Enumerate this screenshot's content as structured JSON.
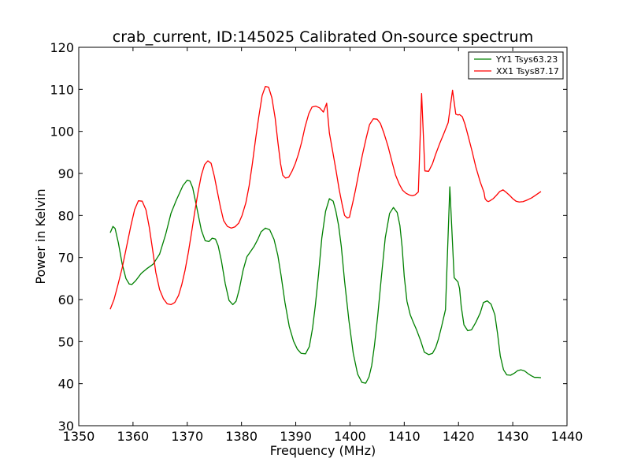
{
  "chart_data": {
    "type": "line",
    "title": "crab_current, ID:145025 Calibrated On-source spectrum",
    "xlabel": "Frequency (MHz)",
    "ylabel": "Power in Kelvin",
    "xlim": [
      1350,
      1440
    ],
    "ylim": [
      30,
      120
    ],
    "xticks": [
      1350,
      1360,
      1370,
      1380,
      1390,
      1400,
      1410,
      1420,
      1430,
      1440
    ],
    "yticks": [
      30,
      40,
      50,
      60,
      70,
      80,
      90,
      100,
      110,
      120
    ],
    "grid": false,
    "legend_position": "top-right",
    "series": [
      {
        "name": "YY1 Tsys63.23",
        "color": "#008000",
        "x": [
          1355.8,
          1356.3,
          1356.7,
          1357.3,
          1358.0,
          1358.7,
          1359.3,
          1359.8,
          1360.5,
          1361.5,
          1362.5,
          1363.7,
          1364.9,
          1366.0,
          1367.0,
          1368.0,
          1369.2,
          1370.0,
          1370.5,
          1371.0,
          1371.8,
          1372.6,
          1373.3,
          1374.0,
          1374.6,
          1375.2,
          1375.7,
          1376.3,
          1377.0,
          1377.7,
          1378.4,
          1379.0,
          1379.6,
          1380.3,
          1381.0,
          1381.6,
          1382.3,
          1383.0,
          1383.6,
          1384.4,
          1385.2,
          1386.0,
          1386.7,
          1387.3,
          1388.0,
          1388.8,
          1389.6,
          1390.3,
          1391.0,
          1391.8,
          1392.5,
          1393.1,
          1393.6,
          1394.2,
          1394.8,
          1395.5,
          1396.2,
          1396.9,
          1397.4,
          1397.9,
          1398.4,
          1399.0,
          1399.8,
          1400.6,
          1401.4,
          1402.2,
          1402.9,
          1403.5,
          1404.0,
          1404.5,
          1405.1,
          1405.8,
          1406.5,
          1407.3,
          1408.0,
          1408.7,
          1409.2,
          1409.6,
          1410.0,
          1410.5,
          1411.1,
          1411.7,
          1412.3,
          1413.0,
          1413.7,
          1414.5,
          1415.2,
          1415.8,
          1416.3,
          1416.9,
          1417.6,
          1418.4,
          1419.2,
          1419.9,
          1420.2,
          1420.5,
          1421.0,
          1421.7,
          1422.4,
          1423.2,
          1424.0,
          1424.6,
          1425.3,
          1426.0,
          1426.7,
          1427.2,
          1427.7,
          1428.3,
          1428.9,
          1429.6,
          1430.3,
          1430.9,
          1431.5,
          1432.2,
          1432.8,
          1433.4,
          1434.0,
          1434.6,
          1435.2
        ],
        "y": [
          75.9,
          77.4,
          76.9,
          73.5,
          68.5,
          65.0,
          63.7,
          63.6,
          64.5,
          66.2,
          67.3,
          68.4,
          70.8,
          75.4,
          80.5,
          83.7,
          87.1,
          88.4,
          88.2,
          86.6,
          81.6,
          76.5,
          74.0,
          73.8,
          74.6,
          74.4,
          72.8,
          69.2,
          63.8,
          59.8,
          58.8,
          59.6,
          62.5,
          67.0,
          70.2,
          71.3,
          72.6,
          74.3,
          76.1,
          77.0,
          76.6,
          74.3,
          70.5,
          65.7,
          59.4,
          53.6,
          50.1,
          48.2,
          47.2,
          47.1,
          48.8,
          53.2,
          58.5,
          66.0,
          74.6,
          81.0,
          84.0,
          83.4,
          81.0,
          77.6,
          72.6,
          64.4,
          55.0,
          47.2,
          42.3,
          40.3,
          40.1,
          41.6,
          44.3,
          49.0,
          56.0,
          65.6,
          74.7,
          80.5,
          81.9,
          80.7,
          77.6,
          72.6,
          65.5,
          59.6,
          56.4,
          54.5,
          52.7,
          50.3,
          47.5,
          46.9,
          47.2,
          48.6,
          50.6,
          53.7,
          57.6,
          86.8,
          65.2,
          64.2,
          62.6,
          58.4,
          54.0,
          52.6,
          52.8,
          54.6,
          56.8,
          59.3,
          59.7,
          58.9,
          56.4,
          51.9,
          46.6,
          43.3,
          42.1,
          42.0,
          42.5,
          43.1,
          43.3,
          43.0,
          42.4,
          41.9,
          41.5,
          41.5,
          41.4
        ]
      },
      {
        "name": "XX1 Tsys87.17",
        "color": "#ff0000",
        "x": [
          1355.8,
          1356.5,
          1357.2,
          1358.0,
          1358.8,
          1359.6,
          1360.3,
          1361.0,
          1361.7,
          1362.4,
          1363.0,
          1363.6,
          1364.2,
          1364.9,
          1365.6,
          1366.3,
          1367.0,
          1367.7,
          1368.4,
          1369.0,
          1369.6,
          1370.2,
          1370.8,
          1371.4,
          1372.0,
          1372.6,
          1373.2,
          1373.8,
          1374.4,
          1375.0,
          1375.5,
          1376.1,
          1376.7,
          1377.4,
          1378.1,
          1378.8,
          1379.5,
          1380.1,
          1380.8,
          1381.4,
          1382.0,
          1382.6,
          1383.2,
          1383.8,
          1384.4,
          1385.0,
          1385.6,
          1386.2,
          1386.7,
          1387.2,
          1387.6,
          1388.1,
          1388.7,
          1389.3,
          1389.9,
          1390.5,
          1391.1,
          1391.7,
          1392.4,
          1393.0,
          1393.7,
          1394.4,
          1395.1,
          1395.7,
          1396.2,
          1396.8,
          1397.4,
          1398.0,
          1398.6,
          1399.0,
          1399.5,
          1399.9,
          1400.1,
          1400.5,
          1401.0,
          1401.6,
          1402.3,
          1403.0,
          1403.6,
          1404.3,
          1405.0,
          1405.6,
          1406.2,
          1407.0,
          1407.7,
          1408.4,
          1409.1,
          1409.7,
          1410.3,
          1410.9,
          1411.5,
          1412.0,
          1412.6,
          1413.2,
          1413.8,
          1414.5,
          1415.2,
          1415.8,
          1416.5,
          1417.3,
          1418.1,
          1418.9,
          1419.5,
          1419.9,
          1420.2,
          1420.7,
          1421.2,
          1421.8,
          1422.5,
          1423.2,
          1424.0,
          1424.7,
          1424.9,
          1425.2,
          1425.5,
          1425.8,
          1426.4,
          1427.0,
          1427.6,
          1428.2,
          1428.8,
          1429.4,
          1430.0,
          1430.6,
          1431.2,
          1431.9,
          1432.7,
          1433.5,
          1434.3,
          1435.2
        ],
        "y": [
          57.7,
          60.0,
          63.4,
          67.5,
          72.5,
          77.5,
          81.4,
          83.5,
          83.4,
          81.3,
          77.2,
          72.0,
          66.5,
          62.4,
          60.2,
          59.0,
          58.8,
          59.3,
          61.0,
          63.6,
          67.0,
          71.2,
          76.0,
          81.0,
          85.6,
          89.6,
          92.1,
          93.0,
          92.4,
          89.3,
          86.0,
          82.1,
          78.8,
          77.4,
          77.0,
          77.3,
          78.2,
          80.0,
          83.0,
          87.0,
          92.3,
          98.2,
          103.6,
          108.5,
          110.7,
          110.5,
          108.0,
          103.2,
          97.5,
          92.3,
          89.6,
          88.9,
          89.1,
          90.5,
          92.3,
          94.6,
          97.5,
          101.0,
          104.2,
          105.8,
          106.0,
          105.6,
          104.6,
          106.7,
          99.6,
          95.3,
          90.9,
          86.2,
          82.3,
          80.0,
          79.4,
          79.6,
          80.8,
          83.0,
          86.0,
          90.0,
          94.5,
          98.5,
          101.6,
          103.0,
          102.9,
          101.9,
          99.8,
          96.5,
          93.0,
          89.6,
          87.4,
          86.0,
          85.3,
          84.9,
          84.7,
          84.9,
          85.6,
          109.0,
          90.6,
          90.5,
          92.3,
          94.6,
          97.0,
          99.5,
          102.1,
          109.8,
          104.1,
          103.9,
          104.0,
          103.5,
          101.7,
          98.8,
          95.3,
          91.5,
          88.0,
          85.5,
          84.0,
          83.5,
          83.3,
          83.5,
          84.0,
          84.8,
          85.7,
          86.1,
          85.5,
          84.8,
          84.0,
          83.4,
          83.2,
          83.3,
          83.7,
          84.2,
          84.9,
          85.7
        ]
      }
    ]
  }
}
